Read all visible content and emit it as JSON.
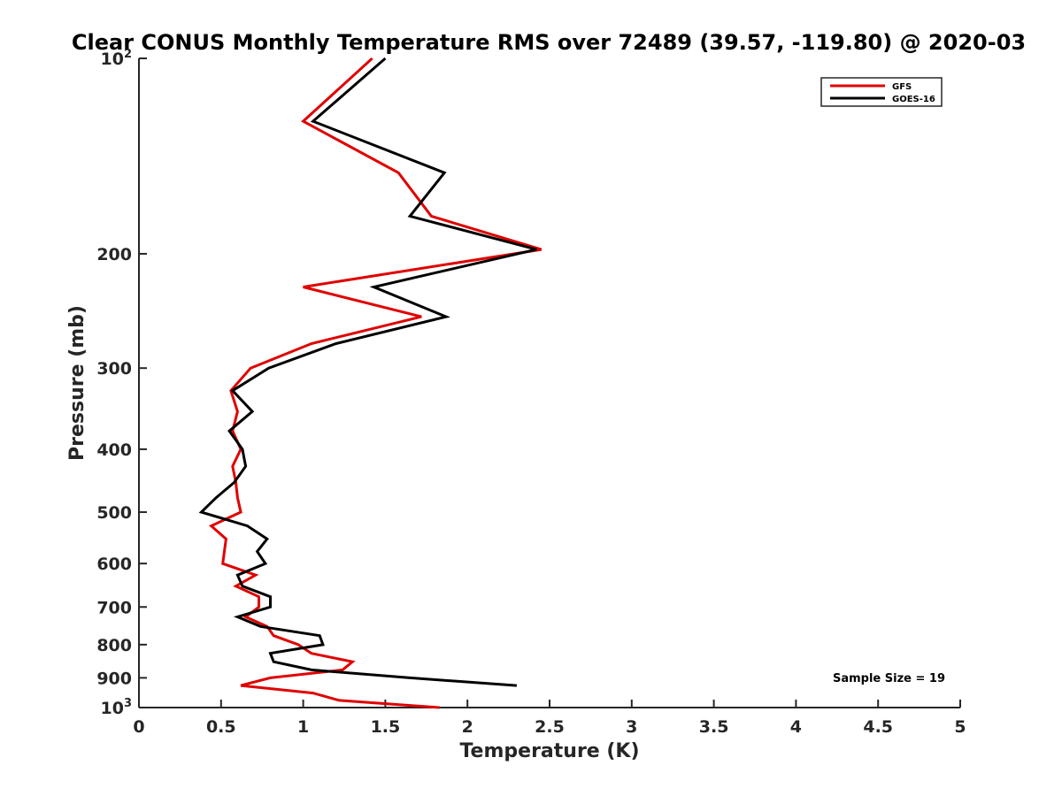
{
  "chart_data": {
    "type": "line",
    "title": "Clear CONUS Monthly Temperature RMS over 72489 (39.57, -119.80) @ 2020-03",
    "xlabel": "Temperature (K)",
    "ylabel": "Pressure (mb)",
    "xlim": [
      0,
      5
    ],
    "ylim": [
      100,
      1000
    ],
    "yscale": "log",
    "y_reversed": true,
    "grid": false,
    "x_ticks": [
      0,
      0.5,
      1,
      1.5,
      2,
      2.5,
      3,
      3.5,
      4,
      4.5,
      5
    ],
    "x_tick_labels": [
      "0",
      "0.5",
      "1",
      "1.5",
      "2",
      "2.5",
      "3",
      "3.5",
      "4",
      "4.5",
      "5"
    ],
    "y_ticks": [
      {
        "value": 100,
        "base": "10",
        "exp": "2"
      },
      {
        "value": 200,
        "label": "200"
      },
      {
        "value": 300,
        "label": "300"
      },
      {
        "value": 400,
        "label": "400"
      },
      {
        "value": 500,
        "label": "500"
      },
      {
        "value": 600,
        "label": "600"
      },
      {
        "value": 700,
        "label": "700"
      },
      {
        "value": 800,
        "label": "800"
      },
      {
        "value": 900,
        "label": "900"
      },
      {
        "value": 1000,
        "base": "10",
        "exp": "3"
      }
    ],
    "legend": {
      "position": "top-right"
    },
    "annotation": "Sample Size = 19",
    "series": [
      {
        "name": "GFS",
        "color": "#e00000",
        "points": [
          [
            1.42,
            100
          ],
          [
            1.0,
            125
          ],
          [
            1.58,
            150
          ],
          [
            1.78,
            175
          ],
          [
            2.45,
            197
          ],
          [
            1.0,
            225
          ],
          [
            1.72,
            250
          ],
          [
            1.05,
            275
          ],
          [
            0.68,
            300
          ],
          [
            0.56,
            325
          ],
          [
            0.6,
            350
          ],
          [
            0.57,
            375
          ],
          [
            0.62,
            400
          ],
          [
            0.57,
            425
          ],
          [
            0.59,
            450
          ],
          [
            0.6,
            475
          ],
          [
            0.62,
            500
          ],
          [
            0.44,
            525
          ],
          [
            0.53,
            550
          ],
          [
            0.52,
            575
          ],
          [
            0.51,
            600
          ],
          [
            0.71,
            625
          ],
          [
            0.59,
            650
          ],
          [
            0.73,
            675
          ],
          [
            0.73,
            700
          ],
          [
            0.65,
            725
          ],
          [
            0.78,
            750
          ],
          [
            0.82,
            775
          ],
          [
            0.97,
            800
          ],
          [
            1.05,
            825
          ],
          [
            1.3,
            850
          ],
          [
            1.24,
            875
          ],
          [
            0.8,
            900
          ],
          [
            0.62,
            925
          ],
          [
            1.06,
            950
          ],
          [
            1.22,
            975
          ],
          [
            1.83,
            1000
          ]
        ]
      },
      {
        "name": "GOES-16",
        "color": "#000000",
        "points": [
          [
            1.5,
            100
          ],
          [
            1.06,
            125
          ],
          [
            1.86,
            150
          ],
          [
            1.65,
            175
          ],
          [
            2.42,
            197
          ],
          [
            1.43,
            225
          ],
          [
            1.87,
            250
          ],
          [
            1.2,
            275
          ],
          [
            0.79,
            300
          ],
          [
            0.57,
            325
          ],
          [
            0.69,
            350
          ],
          [
            0.55,
            375
          ],
          [
            0.63,
            400
          ],
          [
            0.65,
            425
          ],
          [
            0.58,
            450
          ],
          [
            0.47,
            475
          ],
          [
            0.38,
            500
          ],
          [
            0.66,
            525
          ],
          [
            0.78,
            550
          ],
          [
            0.72,
            575
          ],
          [
            0.77,
            600
          ],
          [
            0.6,
            625
          ],
          [
            0.63,
            650
          ],
          [
            0.8,
            675
          ],
          [
            0.8,
            700
          ],
          [
            0.6,
            725
          ],
          [
            0.74,
            750
          ],
          [
            1.1,
            775
          ],
          [
            1.12,
            800
          ],
          [
            0.8,
            825
          ],
          [
            0.82,
            850
          ],
          [
            1.05,
            875
          ],
          [
            1.65,
            900
          ],
          [
            2.3,
            925
          ]
        ]
      }
    ]
  }
}
